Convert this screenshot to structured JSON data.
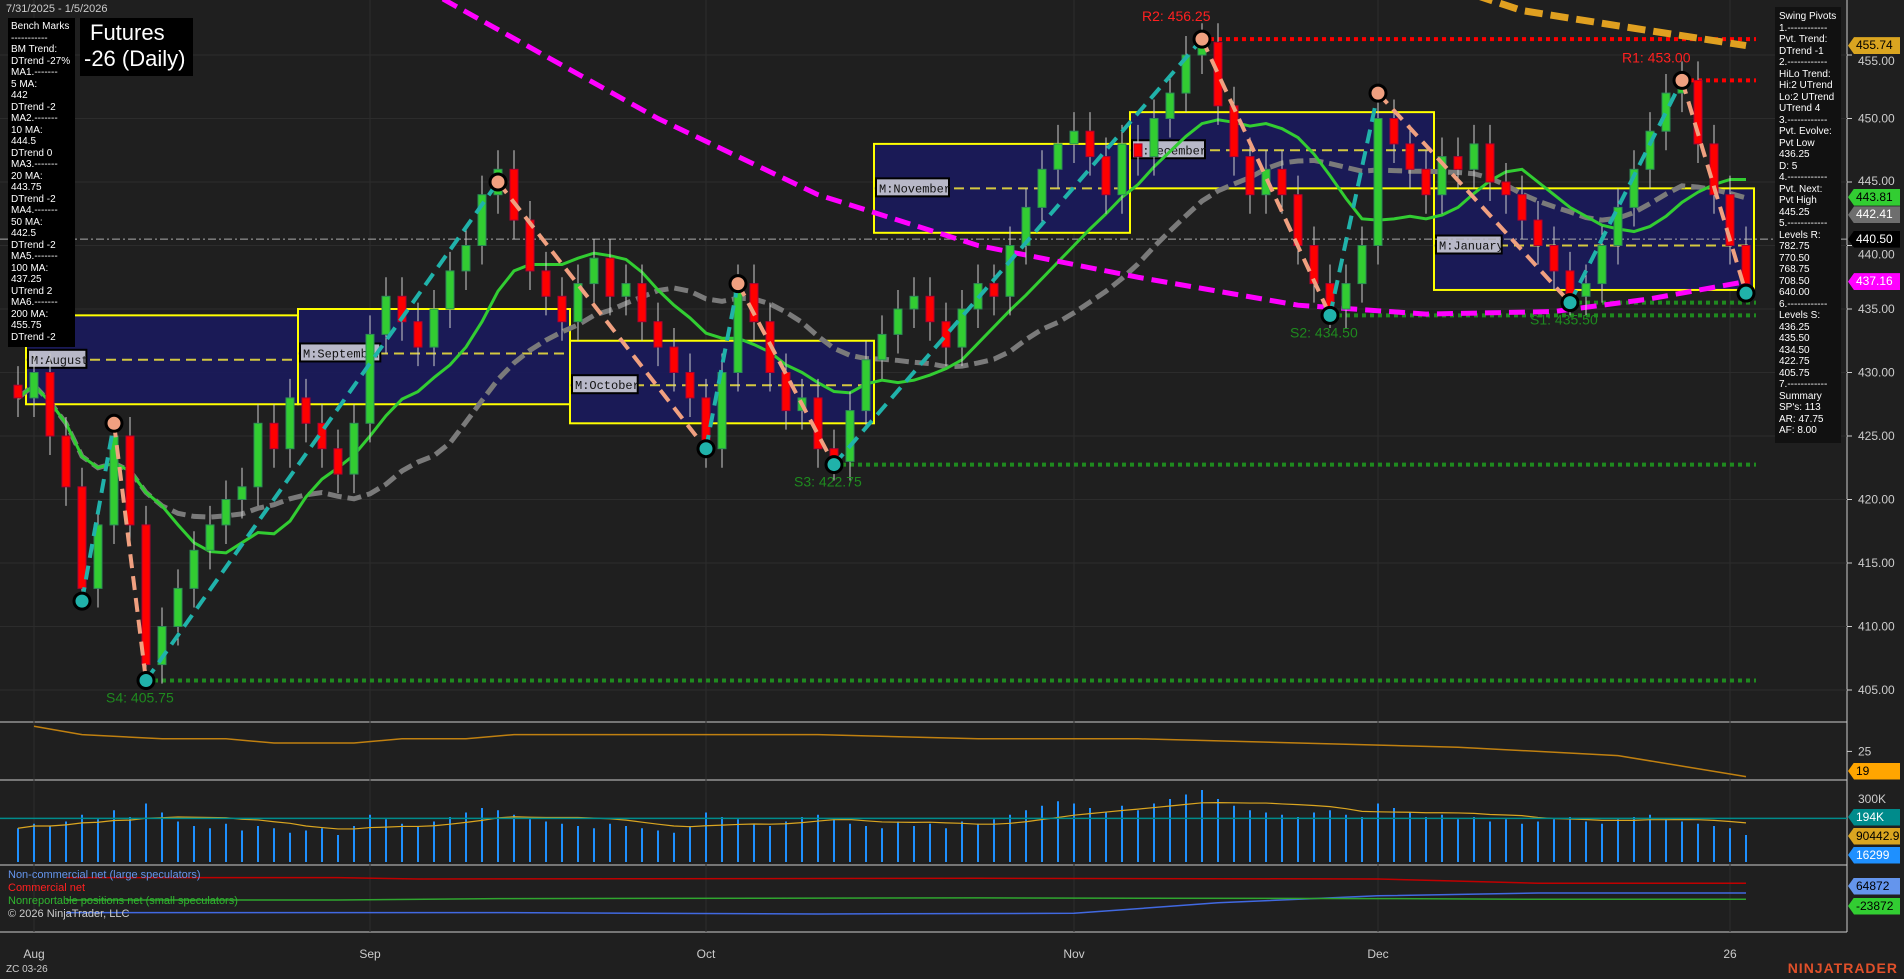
{
  "header": {
    "date_range": "7/31/2025 - 1/5/2026",
    "title_line1": "Futures",
    "title_line2": "-26 (Daily)"
  },
  "bench_marks": [
    "Bench Marks",
    "-----------",
    "BM Trend:",
    "DTrend -27%",
    "MA1.-------",
    "5 MA:",
    "442",
    "DTrend -2",
    "MA2.-------",
    "10 MA:",
    "444.5",
    "DTrend 0",
    "MA3.-------",
    "20 MA:",
    "443.75",
    "DTrend -2",
    "MA4.-------",
    "50 MA:",
    "442.5",
    "DTrend -2",
    "MA5.-------",
    "100 MA:",
    "437.25",
    "UTrend 2",
    "MA6.-------",
    "200 MA:",
    "455.75",
    "DTrend -2"
  ],
  "swing_pivots": [
    "Swing Pivots",
    "1.------------",
    "Pvt. Trend:",
    "DTrend -1",
    "2.------------",
    "HiLo Trend:",
    "Hi:2 UTrend",
    "Lo:2 UTrend",
    "UTrend 4",
    "3.------------",
    "Pvt. Evolve:",
    "Pvt Low",
    "436.25",
    "D: 5",
    "4.------------",
    "Pvt. Next:",
    "Pvt High",
    "445.25",
    "5.------------",
    "Levels R:",
    "782.75",
    "770.50",
    "768.75",
    "708.50",
    "640.00",
    "6.------------",
    "Levels S:",
    "436.25",
    "435.50",
    "434.50",
    "422.75",
    "405.75",
    "7.------------",
    "Summary",
    "SP's: 113",
    "AR: 47.75",
    "AF: 8.00"
  ],
  "colors": {
    "up": "#32cd32",
    "down": "#ff0000",
    "ma_fast": "#32cd32",
    "ma_slow": "#7a7a7a",
    "ma100": "#ff00ff",
    "ma200": "#e0a020",
    "swing_up": "#20b2aa",
    "swing_down": "#f0a080",
    "month_box": "#1a1a5c",
    "box_border": "#ffff00",
    "resistance": "#ff0000",
    "support": "#1f8a1f"
  },
  "chart_data": {
    "type": "candlestick",
    "instrument": "ZC 03-26",
    "x_ticks": [
      {
        "label": "Aug",
        "idx": 1
      },
      {
        "label": "Sep",
        "idx": 22
      },
      {
        "label": "Oct",
        "idx": 43
      },
      {
        "label": "Nov",
        "idx": 66
      },
      {
        "label": "Dec",
        "idx": 85
      },
      {
        "label": "26",
        "idx": 107
      }
    ],
    "y_ticks": [
      405,
      410,
      415,
      420,
      425,
      430,
      435,
      440,
      445,
      450,
      455
    ],
    "ylim": [
      402,
      458
    ],
    "closes": [
      428,
      430,
      425,
      421,
      413,
      418,
      425,
      418,
      407,
      410,
      413,
      416,
      418,
      420,
      421,
      426,
      424,
      428,
      426,
      424,
      422,
      426,
      433,
      436,
      434,
      432,
      435,
      438,
      440,
      444,
      446,
      442,
      438,
      436,
      434,
      437,
      439,
      436,
      437,
      434,
      432,
      430,
      428,
      424,
      430,
      437,
      434,
      430,
      427,
      428,
      424,
      423,
      427,
      431,
      433,
      435,
      436,
      434,
      432,
      435,
      437,
      436,
      440,
      443,
      446,
      448,
      449,
      447,
      444,
      448,
      447,
      450,
      452,
      455,
      456,
      451,
      447,
      444,
      446,
      444,
      440,
      437,
      435,
      437,
      440,
      450,
      448,
      446,
      444,
      447,
      446,
      448,
      445,
      444,
      442,
      440,
      438,
      436,
      437,
      440,
      443,
      446,
      449,
      452,
      453,
      448,
      444,
      440,
      437
    ],
    "ma100": [
      [
        20,
        464
      ],
      [
        30,
        457
      ],
      [
        40,
        450
      ],
      [
        50,
        444
      ],
      [
        60,
        440
      ],
      [
        70,
        437.5
      ],
      [
        80,
        435.3
      ],
      [
        88,
        434.6
      ],
      [
        96,
        434.8
      ],
      [
        102,
        435.8
      ],
      [
        108,
        437.16
      ]
    ],
    "ma200": [
      [
        88,
        461
      ],
      [
        94,
        458.5
      ],
      [
        100,
        457.3
      ],
      [
        108,
        455.74
      ]
    ],
    "pivots": [
      {
        "idx": 4,
        "price": 412,
        "type": "low"
      },
      {
        "idx": 6,
        "price": 426,
        "type": "high"
      },
      {
        "idx": 8,
        "price": 405.75,
        "type": "low",
        "label": "S4: 405.75"
      },
      {
        "idx": 30,
        "price": 445,
        "type": "high"
      },
      {
        "idx": 43,
        "price": 424,
        "type": "low"
      },
      {
        "idx": 45,
        "price": 437,
        "type": "high"
      },
      {
        "idx": 51,
        "price": 422.75,
        "type": "low",
        "label": "S3: 422.75"
      },
      {
        "idx": 74,
        "price": 456.25,
        "type": "high",
        "label": "R2: 456.25"
      },
      {
        "idx": 82,
        "price": 434.5,
        "type": "low",
        "label": "S2: 434.50"
      },
      {
        "idx": 85,
        "price": 452,
        "type": "high"
      },
      {
        "idx": 97,
        "price": 435.5,
        "type": "low",
        "label": "S1: 435.50"
      },
      {
        "idx": 104,
        "price": 453,
        "type": "high",
        "label": "R1: 453.00"
      },
      {
        "idx": 108,
        "price": 436.25,
        "type": "low"
      }
    ],
    "levels": [
      {
        "price": 456.25,
        "from": 74,
        "kind": "resistance"
      },
      {
        "price": 453,
        "from": 104,
        "kind": "resistance"
      },
      {
        "price": 434.5,
        "from": 82,
        "kind": "support"
      },
      {
        "price": 435.5,
        "from": 97,
        "kind": "support"
      },
      {
        "price": 422.75,
        "from": 51,
        "kind": "support"
      },
      {
        "price": 405.75,
        "from": 8,
        "kind": "support"
      }
    ],
    "last_price": 440.5,
    "month_boxes": [
      {
        "label": "M:August",
        "from": 1,
        "to": 17,
        "high": 434.5,
        "low": 427.5,
        "mid": 431
      },
      {
        "label": "M:September",
        "from": 18,
        "to": 34,
        "high": 435,
        "low": 427.5,
        "mid": 431.5
      },
      {
        "label": "M:October",
        "from": 35,
        "to": 53,
        "high": 432.5,
        "low": 426,
        "mid": 429
      },
      {
        "label": "M:November",
        "from": 54,
        "to": 69,
        "high": 448,
        "low": 441,
        "mid": 444.5
      },
      {
        "label": "M:December",
        "from": 70,
        "to": 88,
        "high": 450.5,
        "low": 444.5,
        "mid": 447.5
      },
      {
        "label": "M:January",
        "from": 89,
        "to": 108,
        "high": 444.5,
        "low": 436.5,
        "mid": 440
      }
    ],
    "price_tags": [
      {
        "value": "455.74",
        "price": 455.74,
        "bg": "#daa520",
        "fg": "#000"
      },
      {
        "value": "443.81",
        "price": 443.81,
        "bg": "#32cd32",
        "fg": "#000"
      },
      {
        "value": "442.41",
        "price": 442.41,
        "bg": "#6e6e6e",
        "fg": "#fff"
      },
      {
        "value": "440.50",
        "price": 440.5,
        "bg": "#000",
        "fg": "#fff"
      },
      {
        "value": "437.16",
        "price": 437.16,
        "bg": "#ff00ff",
        "fg": "#fff"
      }
    ],
    "adx": {
      "ticks": [
        "25"
      ],
      "last": "19",
      "values": [
        [
          1,
          31
        ],
        [
          4,
          29
        ],
        [
          9,
          28
        ],
        [
          13,
          28
        ],
        [
          16,
          27
        ],
        [
          21,
          27
        ],
        [
          24,
          28
        ],
        [
          28,
          28
        ],
        [
          31,
          29
        ],
        [
          50,
          29
        ],
        [
          60,
          28
        ],
        [
          70,
          28
        ],
        [
          80,
          27
        ],
        [
          90,
          26
        ],
        [
          100,
          24
        ],
        [
          108,
          19
        ]
      ]
    },
    "volume": {
      "tick": "300K",
      "tags": [
        {
          "value": "194K",
          "bg": "#008b8b",
          "fg": "#fff"
        },
        {
          "value": "90442.93",
          "bg": "#daa520",
          "fg": "#000"
        },
        {
          "value": "16299",
          "bg": "#1e90ff",
          "fg": "#fff"
        }
      ],
      "values_k": [
        150,
        170,
        160,
        180,
        210,
        190,
        230,
        200,
        260,
        220,
        180,
        160,
        150,
        170,
        140,
        160,
        150,
        130,
        140,
        150,
        120,
        160,
        210,
        190,
        170,
        160,
        180,
        200,
        220,
        240,
        230,
        210,
        190,
        180,
        170,
        160,
        150,
        170,
        160,
        150,
        140,
        130,
        160,
        220,
        200,
        190,
        170,
        160,
        180,
        200,
        210,
        190,
        170,
        160,
        150,
        180,
        160,
        170,
        150,
        180,
        170,
        190,
        210,
        230,
        250,
        270,
        260,
        240,
        220,
        250,
        230,
        260,
        280,
        300,
        320,
        280,
        250,
        230,
        220,
        210,
        200,
        220,
        230,
        210,
        200,
        260,
        240,
        220,
        200,
        210,
        190,
        200,
        180,
        190,
        170,
        180,
        190,
        200,
        180,
        170,
        190,
        200,
        210,
        190,
        180,
        170,
        160,
        150,
        120
      ]
    },
    "cot": {
      "tags": [
        {
          "value": "64872",
          "bg": "#6495ed",
          "fg": "#000"
        },
        {
          "value": "-23872",
          "bg": "#32cd32",
          "fg": "#000"
        }
      ],
      "legend": [
        "Non-commercial net (large speculators)",
        "Commercial net",
        "Nonreportable positions net (small speculators)"
      ],
      "noncommercial": [
        [
          3,
          -0.9
        ],
        [
          30,
          -0.9
        ],
        [
          50,
          -1
        ],
        [
          66,
          -0.95
        ],
        [
          75,
          -0.2
        ],
        [
          85,
          0.3
        ],
        [
          95,
          0.5
        ],
        [
          108,
          0.5
        ]
      ],
      "commercial": [
        [
          3,
          1.6
        ],
        [
          20,
          1.6
        ],
        [
          25,
          1.5
        ],
        [
          60,
          1.55
        ],
        [
          85,
          1.5
        ],
        [
          95,
          1.2
        ],
        [
          108,
          1.2
        ]
      ],
      "nonreportable": [
        [
          3,
          0
        ],
        [
          20,
          0
        ],
        [
          30,
          0.1
        ],
        [
          60,
          0.15
        ],
        [
          85,
          0.1
        ],
        [
          95,
          0.05
        ],
        [
          108,
          0.05
        ]
      ]
    }
  },
  "footer": {
    "copyright": "© 2026 NinjaTrader, LLC",
    "instrument": "ZC 03-26",
    "brand": "NINJATRADER"
  }
}
